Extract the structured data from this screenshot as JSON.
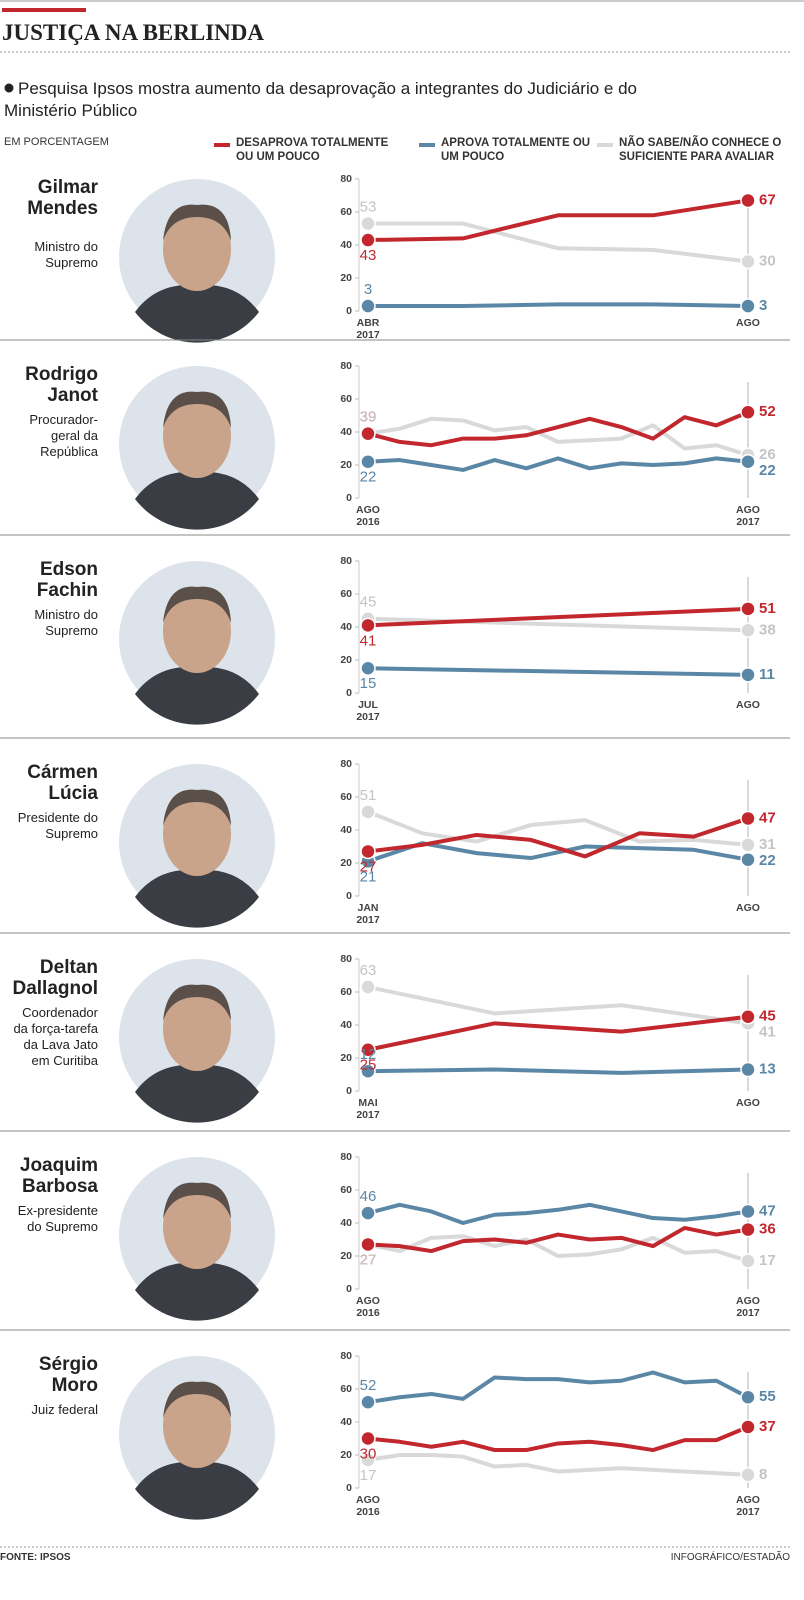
{
  "title": "JUSTIÇA NA BERLINDA",
  "subtitle": "Pesquisa Ipsos mostra aumento da desaprovação a integrantes do Judiciário e do Ministério Público",
  "unit": "EM PORCENTAGEM",
  "legend": [
    {
      "name": "DESAPROVA TOTALMENTE OU UM POUCO",
      "color": "#c1272d"
    },
    {
      "name": "APROVA TOTALMENTE OU UM POUCO",
      "color": "#5b87a6"
    },
    {
      "name": "NÃO SABE/NÃO CONHECE O SUFICIENTE PARA AVALIAR",
      "color": "#d9d9d9"
    }
  ],
  "chart_data": [
    {
      "type": "line",
      "name": "Gilmar Mendes",
      "role": "Ministro do Supremo",
      "categories": [
        "ABR 2017",
        null,
        null,
        null,
        "AGO"
      ],
      "series": [
        {
          "values": [
            43,
            44,
            58,
            58,
            67
          ]
        },
        {
          "values": [
            3,
            3,
            4,
            4,
            3
          ]
        },
        {
          "values": [
            53,
            53,
            38,
            37,
            30
          ]
        }
      ],
      "ylim": [
        0,
        80
      ],
      "yticks": [
        0,
        20,
        40,
        60,
        80
      ]
    },
    {
      "type": "line",
      "name": "Rodrigo Janot",
      "role": "Procurador-geral da República",
      "categories": [
        "AGO 2016",
        null,
        null,
        null,
        null,
        null,
        null,
        null,
        null,
        null,
        null,
        null,
        "AGO 2017"
      ],
      "series": [
        {
          "values": [
            39,
            34,
            32,
            36,
            36,
            38,
            43,
            48,
            43,
            36,
            49,
            44,
            52
          ]
        },
        {
          "values": [
            22,
            23,
            20,
            17,
            23,
            18,
            24,
            18,
            21,
            20,
            21,
            24,
            22
          ]
        },
        {
          "values": [
            39,
            42,
            48,
            47,
            41,
            43,
            34,
            35,
            36,
            44,
            30,
            32,
            26
          ]
        }
      ],
      "ylim": [
        0,
        80
      ],
      "yticks": [
        0,
        20,
        40,
        60,
        80
      ]
    },
    {
      "type": "line",
      "name": "Edson Fachin",
      "role": "Ministro do Supremo",
      "categories": [
        "JUL 2017",
        "AGO"
      ],
      "series": [
        {
          "values": [
            41,
            51
          ]
        },
        {
          "values": [
            15,
            11
          ]
        },
        {
          "values": [
            45,
            38
          ]
        }
      ],
      "ylim": [
        0,
        80
      ],
      "yticks": [
        0,
        20,
        40,
        60,
        80
      ]
    },
    {
      "type": "line",
      "name": "Cármen Lúcia",
      "role": "Presidente do Supremo",
      "categories": [
        "JAN 2017",
        null,
        null,
        null,
        null,
        null,
        null,
        "AGO"
      ],
      "series": [
        {
          "values": [
            27,
            31,
            37,
            34,
            24,
            38,
            36,
            47
          ]
        },
        {
          "values": [
            21,
            32,
            26,
            23,
            30,
            29,
            28,
            22
          ]
        },
        {
          "values": [
            51,
            38,
            33,
            43,
            46,
            33,
            34,
            31
          ]
        }
      ],
      "ylim": [
        0,
        80
      ],
      "yticks": [
        0,
        20,
        40,
        60,
        80
      ]
    },
    {
      "type": "line",
      "name": "Deltan Dallagnol",
      "role": "Coordenador da força-tarefa da Lava Jato em Curitiba",
      "categories": [
        "MAI 2017",
        null,
        null,
        "AGO"
      ],
      "series": [
        {
          "values": [
            25,
            41,
            36,
            45
          ]
        },
        {
          "values": [
            12,
            13,
            11,
            13
          ]
        },
        {
          "values": [
            63,
            47,
            52,
            41
          ]
        }
      ],
      "ylim": [
        0,
        80
      ],
      "yticks": [
        0,
        20,
        40,
        60,
        80
      ]
    },
    {
      "type": "line",
      "name": "Joaquim Barbosa",
      "role": "Ex-presidente do Supremo",
      "categories": [
        "AGO 2016",
        null,
        null,
        null,
        null,
        null,
        null,
        null,
        null,
        null,
        null,
        null,
        "AGO 2017"
      ],
      "series": [
        {
          "values": [
            27,
            26,
            23,
            29,
            30,
            28,
            33,
            30,
            31,
            26,
            37,
            33,
            36
          ]
        },
        {
          "values": [
            46,
            51,
            47,
            40,
            45,
            46,
            48,
            51,
            47,
            43,
            42,
            44,
            47
          ]
        },
        {
          "values": [
            27,
            23,
            31,
            32,
            26,
            30,
            20,
            21,
            24,
            31,
            22,
            23,
            17
          ]
        }
      ],
      "ylim": [
        0,
        80
      ],
      "yticks": [
        0,
        20,
        40,
        60,
        80
      ]
    },
    {
      "type": "line",
      "name": "Sérgio Moro",
      "role": "Juiz federal",
      "categories": [
        "AGO 2016",
        null,
        null,
        null,
        null,
        null,
        null,
        null,
        null,
        null,
        null,
        null,
        "AGO 2017"
      ],
      "series": [
        {
          "values": [
            30,
            28,
            25,
            28,
            23,
            23,
            27,
            28,
            26,
            23,
            29,
            29,
            37
          ]
        },
        {
          "values": [
            52,
            55,
            57,
            54,
            67,
            66,
            66,
            64,
            65,
            70,
            64,
            65,
            55
          ]
        },
        {
          "values": [
            17,
            20,
            20,
            19,
            13,
            14,
            10,
            11,
            12,
            11,
            10,
            9,
            8
          ]
        }
      ],
      "ylim": [
        0,
        80
      ],
      "yticks": [
        0,
        20,
        40,
        60,
        80
      ]
    }
  ],
  "source": "FONTE: IPSOS",
  "credit": "INFOGRÁFICO/ESTADÃO"
}
